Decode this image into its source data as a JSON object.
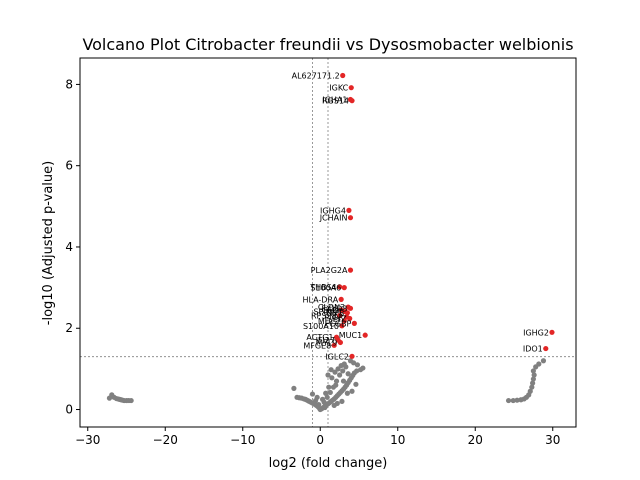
{
  "chart_data": {
    "type": "scatter",
    "title": "Volcano Plot Citrobacter freundii vs Dysosmobacter welbionis",
    "xlabel": "log2 (fold change)",
    "ylabel": "-log10 (Adjusted p-value)",
    "xlim": [
      -31,
      33
    ],
    "ylim": [
      -0.43,
      8.65
    ],
    "xticks": [
      -30,
      -20,
      -10,
      0,
      10,
      20,
      30
    ],
    "yticks": [
      0,
      2,
      4,
      6,
      8
    ],
    "xtick_labels": [
      "−30",
      "−20",
      "−10",
      "0",
      "10",
      "20",
      "30"
    ],
    "ytick_labels": [
      "0",
      "2",
      "4",
      "6",
      "8"
    ],
    "threshold_lines": {
      "x": [
        -1,
        1
      ],
      "y": 1.3
    },
    "colors": {
      "significant": "#e32626",
      "nonsignificant": "#808080",
      "threshold": "#808080"
    },
    "significant": [
      {
        "label": "AL627171.2",
        "x": 2.9,
        "y": 8.22
      },
      {
        "label": "IGKC",
        "x": 4.0,
        "y": 7.92
      },
      {
        "label": "IGHA1",
        "x": 3.9,
        "y": 7.63
      },
      {
        "label": "RGS14",
        "x": 4.1,
        "y": 7.6
      },
      {
        "label": "IGHG4",
        "x": 3.7,
        "y": 4.9
      },
      {
        "label": "JCHAIN",
        "x": 3.9,
        "y": 4.72
      },
      {
        "label": "PLA2G2A",
        "x": 3.9,
        "y": 3.43
      },
      {
        "label": "THBS4",
        "x": 2.5,
        "y": 3.02
      },
      {
        "label": "S100A6",
        "x": 3.1,
        "y": 3.0
      },
      {
        "label": "HLA-DRA",
        "x": 2.7,
        "y": 2.71
      },
      {
        "label": "CLDN3",
        "x": 3.6,
        "y": 2.52
      },
      {
        "label": "FXYD3",
        "x": 3.9,
        "y": 2.49
      },
      {
        "label": "CFD",
        "x": 2.7,
        "y": 2.45
      },
      {
        "label": "SPINK4",
        "x": 3.2,
        "y": 2.41
      },
      {
        "label": "TFF3",
        "x": 3.5,
        "y": 2.38
      },
      {
        "label": "RPS28",
        "x": 2.5,
        "y": 2.31
      },
      {
        "label": "PIGR",
        "x": 3.4,
        "y": 2.28
      },
      {
        "label": "LYZ",
        "x": 3.8,
        "y": 2.24
      },
      {
        "label": "MUC2",
        "x": 3.1,
        "y": 2.18
      },
      {
        "label": "FCGBP",
        "x": 4.4,
        "y": 2.12
      },
      {
        "label": "S100A10",
        "x": 2.8,
        "y": 2.06
      },
      {
        "label": "MUC1",
        "x": 5.8,
        "y": 1.83
      },
      {
        "label": "ACTG1",
        "x": 2.1,
        "y": 1.78
      },
      {
        "label": "IFI27",
        "x": 2.3,
        "y": 1.71
      },
      {
        "label": "MYL9",
        "x": 2.6,
        "y": 1.65
      },
      {
        "label": "MFGE8",
        "x": 1.8,
        "y": 1.58
      },
      {
        "label": "IGLC2",
        "x": 4.1,
        "y": 1.31
      },
      {
        "label": "IGHG2",
        "x": 29.9,
        "y": 1.9
      },
      {
        "label": "IDO1",
        "x": 29.1,
        "y": 1.5
      }
    ],
    "nonsignificant": [
      [
        -27.2,
        0.28
      ],
      [
        -26.9,
        0.36
      ],
      [
        -26.6,
        0.3
      ],
      [
        -26.3,
        0.27
      ],
      [
        -26.1,
        0.26
      ],
      [
        -25.9,
        0.25
      ],
      [
        -25.7,
        0.24
      ],
      [
        -25.5,
        0.23
      ],
      [
        -25.3,
        0.22
      ],
      [
        -25.0,
        0.22
      ],
      [
        -24.7,
        0.22
      ],
      [
        -24.4,
        0.22
      ],
      [
        -3.4,
        0.52
      ],
      [
        -3.0,
        0.3
      ],
      [
        -2.7,
        0.29
      ],
      [
        -2.4,
        0.28
      ],
      [
        -2.1,
        0.26
      ],
      [
        -1.9,
        0.25
      ],
      [
        -1.7,
        0.23
      ],
      [
        -1.5,
        0.21
      ],
      [
        -1.3,
        0.19
      ],
      [
        -1.1,
        0.17
      ],
      [
        -0.9,
        0.15
      ],
      [
        -0.7,
        0.13
      ],
      [
        -0.5,
        0.1
      ],
      [
        -0.3,
        0.07
      ],
      [
        -0.1,
        0.03
      ],
      [
        0.0,
        0.0
      ],
      [
        0.2,
        0.02
      ],
      [
        0.4,
        0.05
      ],
      [
        0.6,
        0.08
      ],
      [
        0.8,
        0.11
      ],
      [
        1.0,
        0.14
      ],
      [
        1.2,
        0.17
      ],
      [
        1.4,
        0.2
      ],
      [
        1.6,
        0.23
      ],
      [
        1.8,
        0.26
      ],
      [
        2.0,
        0.3
      ],
      [
        2.2,
        0.34
      ],
      [
        2.4,
        0.38
      ],
      [
        2.6,
        0.42
      ],
      [
        2.8,
        0.46
      ],
      [
        3.0,
        0.5
      ],
      [
        3.2,
        0.55
      ],
      [
        3.4,
        0.6
      ],
      [
        3.6,
        0.66
      ],
      [
        3.8,
        0.72
      ],
      [
        4.0,
        0.78
      ],
      [
        4.2,
        0.84
      ],
      [
        4.4,
        0.9
      ],
      [
        4.7,
        0.95
      ],
      [
        5.2,
        0.98
      ],
      [
        5.5,
        1.02
      ],
      [
        4.8,
        1.1
      ],
      [
        4.3,
        1.15
      ],
      [
        3.9,
        1.2
      ],
      [
        3.3,
        1.05
      ],
      [
        2.9,
        0.95
      ],
      [
        2.5,
        0.85
      ],
      [
        2.1,
        0.7
      ],
      [
        1.7,
        0.55
      ],
      [
        1.3,
        0.42
      ],
      [
        0.9,
        0.3
      ],
      [
        0.5,
        0.18
      ],
      [
        -0.2,
        0.12
      ],
      [
        -0.6,
        0.22
      ],
      [
        -1.0,
        0.38
      ],
      [
        1.5,
        0.78
      ],
      [
        1.9,
        0.92
      ],
      [
        2.3,
        1.0
      ],
      [
        2.7,
        1.08
      ],
      [
        3.1,
        1.12
      ],
      [
        3.6,
        0.88
      ],
      [
        2.0,
        0.6
      ],
      [
        1.1,
        0.55
      ],
      [
        0.7,
        0.4
      ],
      [
        0.3,
        0.25
      ],
      [
        -0.4,
        0.3
      ],
      [
        1.4,
        0.98
      ],
      [
        3.5,
        0.4
      ],
      [
        4.1,
        0.45
      ],
      [
        2.8,
        0.2
      ],
      [
        1.8,
        0.1
      ],
      [
        0.6,
        0.05
      ],
      [
        4.6,
        0.62
      ],
      [
        2.2,
        0.15
      ],
      [
        3.0,
        0.7
      ],
      [
        1.0,
        0.85
      ],
      [
        24.3,
        0.22
      ],
      [
        24.9,
        0.22
      ],
      [
        25.4,
        0.23
      ],
      [
        25.9,
        0.24
      ],
      [
        26.3,
        0.26
      ],
      [
        26.6,
        0.3
      ],
      [
        26.9,
        0.36
      ],
      [
        27.1,
        0.45
      ],
      [
        27.3,
        0.55
      ],
      [
        27.4,
        0.65
      ],
      [
        27.5,
        0.75
      ],
      [
        27.6,
        0.85
      ],
      [
        27.5,
        0.95
      ],
      [
        27.8,
        1.05
      ],
      [
        28.2,
        1.12
      ],
      [
        28.8,
        1.2
      ]
    ]
  }
}
